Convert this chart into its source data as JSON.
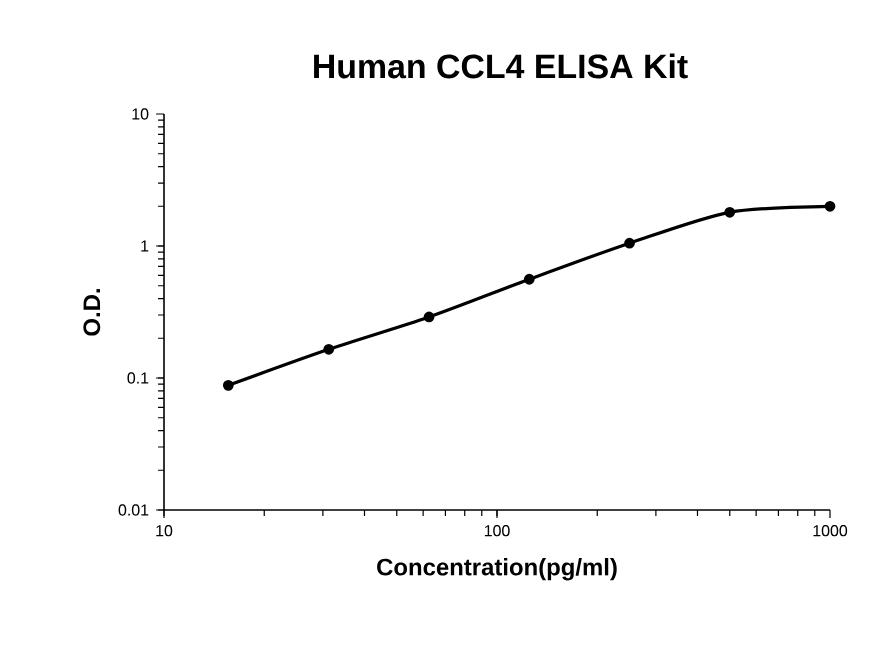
{
  "chart_data": {
    "type": "line",
    "title": "Human CCL4 ELISA Kit",
    "xlabel": "Concentration(pg/ml)",
    "ylabel": "O.D.",
    "x": [
      15.6,
      31.25,
      62.5,
      125,
      250,
      500,
      1000
    ],
    "series": [
      {
        "color": "#000000",
        "values": [
          0.088,
          0.165,
          0.29,
          0.56,
          1.05,
          1.8,
          2.0
        ]
      }
    ],
    "log": "xy",
    "xlim": [
      10,
      1000
    ],
    "ylim": [
      0.01,
      10
    ],
    "xticks": [
      10,
      100,
      1000
    ],
    "yticks": [
      0.01,
      0.1,
      1,
      10
    ],
    "marker": "circle",
    "line_style": "solid"
  }
}
